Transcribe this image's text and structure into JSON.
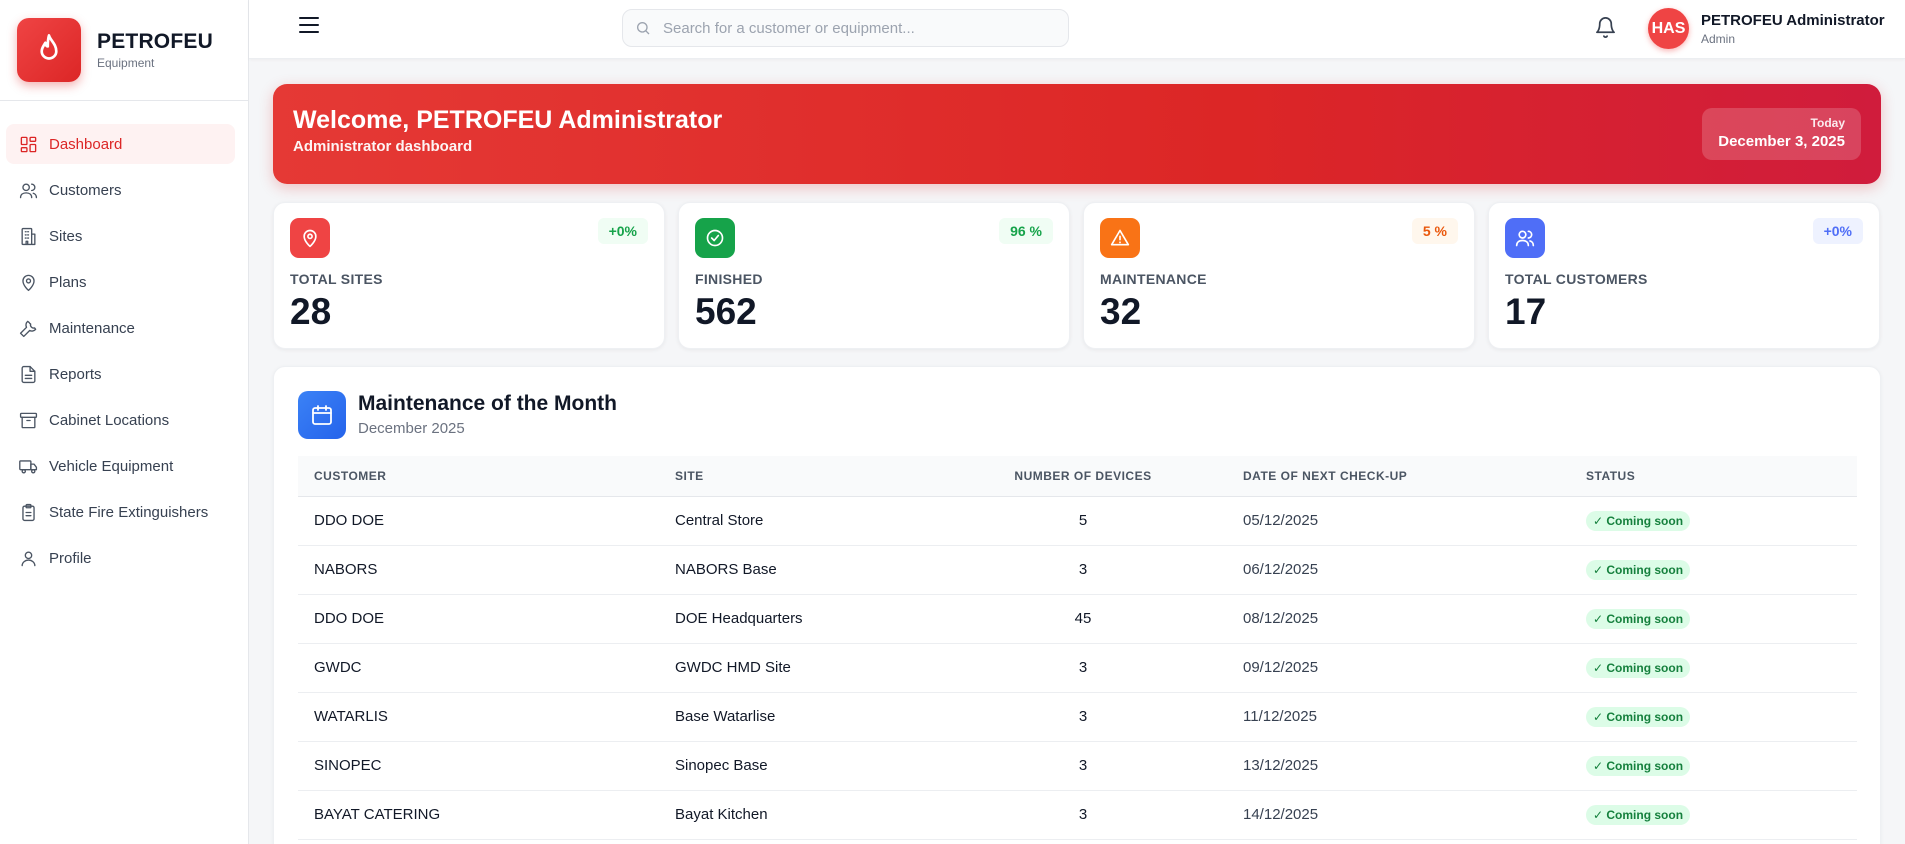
{
  "brand": {
    "name": "PETROFEU",
    "subtitle": "Equipment"
  },
  "sidebar": {
    "items": [
      {
        "label": "Dashboard",
        "icon": "dashboard-icon",
        "active": true
      },
      {
        "label": "Customers",
        "icon": "users-icon"
      },
      {
        "label": "Sites",
        "icon": "building-icon"
      },
      {
        "label": "Plans",
        "icon": "map-pin-icon"
      },
      {
        "label": "Maintenance",
        "icon": "wrench-icon"
      },
      {
        "label": "Reports",
        "icon": "file-icon"
      },
      {
        "label": "Cabinet Locations",
        "icon": "archive-icon"
      },
      {
        "label": "Vehicle Equipment",
        "icon": "truck-icon"
      },
      {
        "label": "State Fire Extinguishers",
        "icon": "clipboard-icon"
      },
      {
        "label": "Profile",
        "icon": "user-icon"
      }
    ]
  },
  "header": {
    "search_placeholder": "Search for a customer or equipment...",
    "user": {
      "initials": "HAS",
      "name": "PETROFEU Administrator",
      "role": "Admin"
    }
  },
  "banner": {
    "title": "Welcome, PETROFEU Administrator",
    "subtitle": "Administrator dashboard",
    "today_label": "Today",
    "today_date": "December 3, 2025"
  },
  "stats": [
    {
      "label": "TOTAL SITES",
      "value": "28",
      "badge": "+0%",
      "color": "#ef4444"
    },
    {
      "label": "FINISHED",
      "value": "562",
      "badge": "96 %",
      "color": "#16a34a"
    },
    {
      "label": "MAINTENANCE",
      "value": "32",
      "badge": "5 %",
      "color": "#f97316"
    },
    {
      "label": "TOTAL CUSTOMERS",
      "value": "17",
      "badge": "+0%",
      "color": "#4f6ef7"
    }
  ],
  "maintenance": {
    "title": "Maintenance of the Month",
    "subtitle": "December 2025",
    "columns": [
      "CUSTOMER",
      "SITE",
      "NUMBER OF DEVICES",
      "DATE OF NEXT CHECK-UP",
      "STATUS"
    ],
    "rows": [
      {
        "customer": "DDO DOE",
        "site": "Central Store",
        "devices": "5",
        "date": "05/12/2025",
        "status": "✓ Coming soon"
      },
      {
        "customer": "NABORS",
        "site": "NABORS Base",
        "devices": "3",
        "date": "06/12/2025",
        "status": "✓ Coming soon"
      },
      {
        "customer": "DDO DOE",
        "site": "DOE Headquarters",
        "devices": "45",
        "date": "08/12/2025",
        "status": "✓ Coming soon"
      },
      {
        "customer": "GWDC",
        "site": "GWDC HMD Site",
        "devices": "3",
        "date": "09/12/2025",
        "status": "✓ Coming soon"
      },
      {
        "customer": "WATARLIS",
        "site": "Base Watarlise",
        "devices": "3",
        "date": "11/12/2025",
        "status": "✓ Coming soon"
      },
      {
        "customer": "SINOPEC",
        "site": "Sinopec Base",
        "devices": "3",
        "date": "13/12/2025",
        "status": "✓ Coming soon"
      },
      {
        "customer": "BAYAT CATERING",
        "site": "Bayat Kitchen",
        "devices": "3",
        "date": "14/12/2025",
        "status": "✓ Coming soon"
      },
      {
        "customer": "",
        "site": "",
        "devices": "",
        "date": "",
        "status": ""
      }
    ]
  }
}
